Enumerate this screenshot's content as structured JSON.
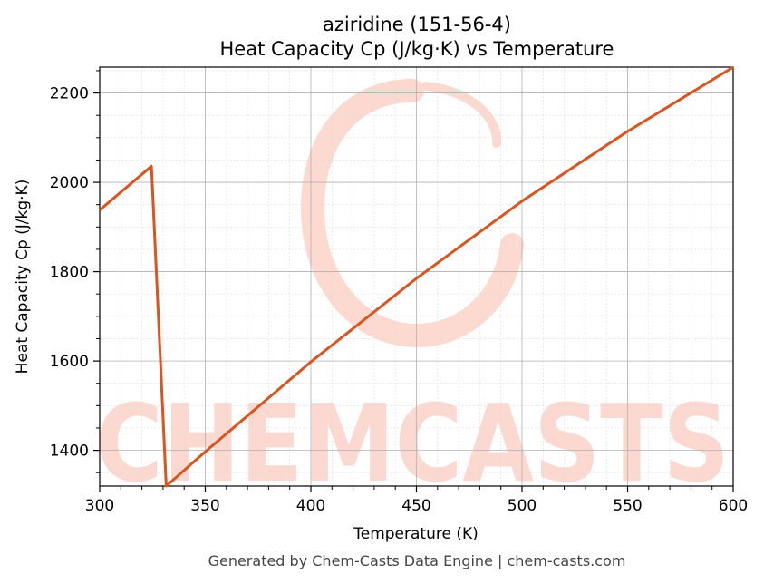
{
  "chart_data": {
    "type": "line",
    "title_line1": "aziridine (151-56-4)",
    "title_line2": "Heat Capacity Cp (J/kg·K) vs Temperature",
    "xlabel": "Temperature (K)",
    "ylabel": "Heat Capacity Cp (J/kg·K)",
    "xlim": [
      300,
      600
    ],
    "ylim": [
      1320,
      2258
    ],
    "x_ticks": [
      300,
      350,
      400,
      450,
      500,
      550,
      600
    ],
    "y_ticks": [
      1400,
      1600,
      1800,
      2000,
      2200
    ],
    "grid": true,
    "line_color": "#d9541e",
    "series": [
      {
        "x": [
          300,
          324.5,
          331.5,
          350,
          400,
          450,
          500,
          550,
          600
        ],
        "y": [
          1938,
          2036,
          1320,
          1397,
          1598,
          1785,
          1958,
          2114,
          2258
        ]
      }
    ]
  },
  "watermark": {
    "text": "CHEMCASTS",
    "color": "#fbd3c8"
  },
  "footer": "Generated by Chem-Casts Data Engine | chem-casts.com"
}
